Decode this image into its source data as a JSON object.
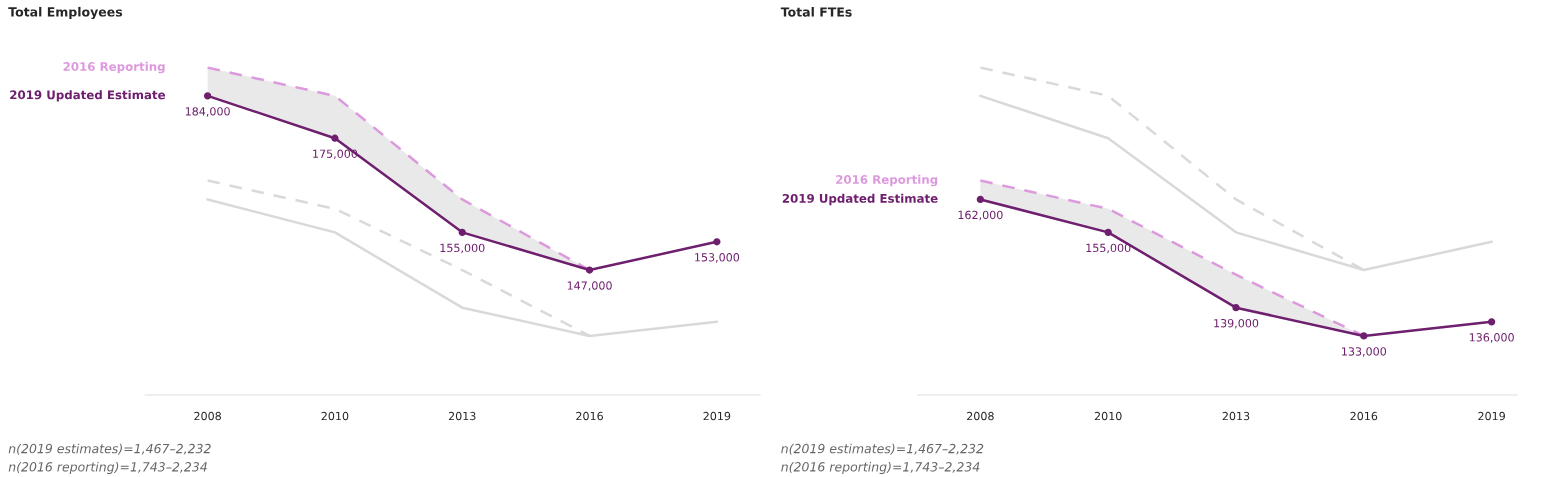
{
  "chart_data": [
    {
      "type": "line",
      "title": "Total Employees",
      "categories": [
        "2008",
        "2010",
        "2013",
        "2016",
        "2019"
      ],
      "tick_labels": "x",
      "legend": false,
      "grid": false,
      "series": [
        {
          "color": "#d9d9d9",
          "line_style": "dashed",
          "values": [
            166000,
            160000,
            147000,
            133000,
            null
          ]
        },
        {
          "color": "#d9d9d9",
          "line_style": "solid",
          "values": [
            162000,
            155000,
            139000,
            133000,
            136000
          ]
        },
        {
          "name": "2016 Reporting",
          "color": "#dd99dd",
          "line_style": "dashed",
          "values": [
            190000,
            184000,
            162000,
            147000,
            null
          ],
          "lower": [
            184000,
            175000,
            155000,
            147000,
            null
          ],
          "upper": [
            190000,
            184000,
            162000,
            147000,
            null
          ]
        },
        {
          "name": "2019 Updated Estimate",
          "color": "#6e1f6e",
          "line_style": "solid",
          "marker": "circle",
          "values": [
            184000,
            175000,
            155000,
            147000,
            153000
          ],
          "value_labels": [
            "184,000",
            "175,000",
            "155,000",
            "147,000",
            "153,000"
          ]
        }
      ],
      "annotations": [
        "n(2019 estimates)=1,467–2,232",
        "n(2016 reporting)=1,743–2,234"
      ]
    },
    {
      "type": "line",
      "title": "Total FTEs",
      "categories": [
        "2008",
        "2010",
        "2013",
        "2016",
        "2019"
      ],
      "tick_labels": "x",
      "legend": false,
      "grid": false,
      "series": [
        {
          "color": "#d9d9d9",
          "line_style": "dashed",
          "values": [
            190000,
            184000,
            162000,
            147000,
            null
          ]
        },
        {
          "color": "#d9d9d9",
          "line_style": "solid",
          "values": [
            184000,
            175000,
            155000,
            147000,
            153000
          ]
        },
        {
          "name": "2016 Reporting",
          "color": "#dd99dd",
          "line_style": "dashed",
          "values": [
            166000,
            160000,
            146000,
            133000,
            null
          ],
          "lower": [
            162000,
            155000,
            139000,
            133000,
            null
          ],
          "upper": [
            166000,
            160000,
            146000,
            133000,
            null
          ]
        },
        {
          "name": "2019 Updated Estimate",
          "color": "#6e1f6e",
          "line_style": "solid",
          "marker": "circle",
          "values": [
            162000,
            155000,
            139000,
            133000,
            136000
          ],
          "value_labels": [
            "162,000",
            "155,000",
            "139,000",
            "133,000",
            "136,000"
          ]
        }
      ],
      "annotations": [
        "n(2019 estimates)=1,467–2,232",
        "n(2016 reporting)=1,743–2,234"
      ]
    }
  ]
}
